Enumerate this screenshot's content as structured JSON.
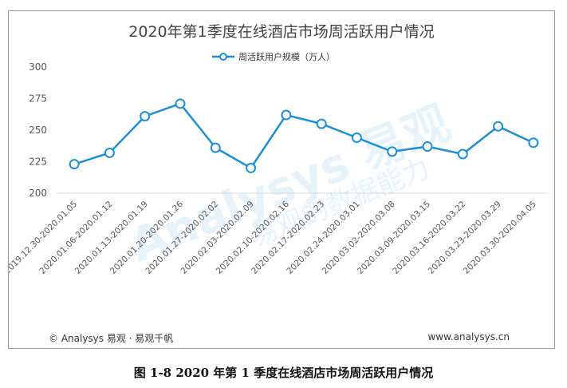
{
  "chart_data": {
    "type": "line",
    "title": "2020年第1季度在线酒店市场周活跃用户情况",
    "legend_position": "top-center",
    "grid": "horizontal-baseline-only",
    "categories": [
      "2019.12.30-2020.01.05",
      "2020.01.06-2020.01.12",
      "2020.01.13-2020.01.19",
      "2020.01.20-2020.01.26",
      "2020.01.27-2020.02.02",
      "2020.02.03-2020.02.09",
      "2020.02.10-2020.02.16",
      "2020.02.17-2020.02.23",
      "2020.02.24-2020.03.01",
      "2020.03.02-2020.03.08",
      "2020.03.09-2020.03.15",
      "2020.03.16-2020.03.22",
      "2020.03.23-2020.03.29",
      "2020.03.30-2020.04.05"
    ],
    "series": [
      {
        "name": "周活跃用户规模（万人）",
        "color": "#1a8fd8",
        "values": [
          223,
          232,
          261,
          271,
          236,
          220,
          262,
          255,
          244,
          233,
          237,
          231,
          253,
          240
        ]
      }
    ],
    "yticks": [
      200,
      225,
      250,
      275,
      300
    ],
    "ylim": [
      200,
      300
    ]
  },
  "watermark": {
    "text": "Analysys 易观",
    "subtext": "易观的数据能力"
  },
  "footer": {
    "left": "© Analysys 易观 · 易观千帆",
    "right": "www.analysys.cn"
  },
  "caption": "图  1-8  2020 年第 1 季度在线酒店市场周活跃用户情况"
}
